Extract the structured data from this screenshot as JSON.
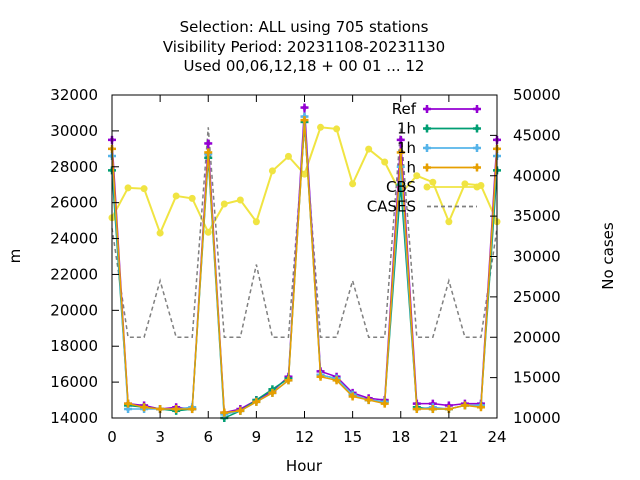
{
  "chart_data": {
    "type": "line",
    "title_lines": [
      "Selection: ALL using   705 stations",
      "Visibility    Period: 20231108-20231130",
      "Used  00,06,12,18 + 00 01 ... 12"
    ],
    "xlabel": "Hour",
    "ylabel": "m",
    "y2label": "No cases",
    "xlim": [
      0,
      24
    ],
    "ylim": [
      14000,
      32000
    ],
    "y2lim": [
      10000,
      50000
    ],
    "xticks": [
      0,
      3,
      6,
      9,
      12,
      15,
      18,
      21,
      24
    ],
    "yticks": [
      14000,
      16000,
      18000,
      20000,
      22000,
      24000,
      26000,
      28000,
      30000,
      32000
    ],
    "y2ticks": [
      10000,
      15000,
      20000,
      25000,
      30000,
      35000,
      40000,
      45000,
      50000
    ],
    "grid": false,
    "legend_position": "top-right",
    "x": [
      0,
      1,
      2,
      3,
      4,
      5,
      6,
      7,
      8,
      9,
      10,
      11,
      12,
      13,
      14,
      15,
      16,
      17,
      18,
      19,
      20,
      21,
      22,
      23,
      24
    ],
    "series": [
      {
        "name": "Ref",
        "axis": "y",
        "color": "#9400d3",
        "marker": "plus",
        "values": [
          29500,
          14800,
          14700,
          14500,
          14600,
          14500,
          29300,
          14300,
          14500,
          15000,
          15500,
          16300,
          31300,
          16600,
          16300,
          15400,
          15100,
          15000,
          29500,
          14800,
          14800,
          14700,
          14800,
          14800,
          29500
        ]
      },
      {
        "name": "1h",
        "axis": "y",
        "color": "#009e73",
        "marker": "plus",
        "values": [
          27800,
          14700,
          14600,
          14500,
          14400,
          14500,
          28500,
          14000,
          14400,
          15000,
          15600,
          16200,
          30500,
          16400,
          16200,
          15300,
          15000,
          14900,
          27000,
          14600,
          14500,
          14500,
          14700,
          14700,
          27800
        ]
      },
      {
        "name": "1h",
        "axis": "y",
        "color": "#56b4e9",
        "marker": "plus",
        "values": [
          28600,
          14500,
          14500,
          14500,
          14500,
          14600,
          28700,
          14200,
          14400,
          14900,
          15400,
          16100,
          30800,
          16400,
          16200,
          15300,
          15000,
          14900,
          28000,
          14500,
          14600,
          14500,
          14700,
          14700,
          28600
        ]
      },
      {
        "name": "h",
        "axis": "y",
        "color": "#e69f00",
        "marker": "plus",
        "values": [
          29000,
          14800,
          14600,
          14500,
          14500,
          14500,
          28800,
          14300,
          14400,
          14900,
          15400,
          16100,
          30600,
          16300,
          16100,
          15200,
          15000,
          14800,
          28800,
          14500,
          14500,
          14500,
          14700,
          14600,
          29000
        ]
      },
      {
        "name": "CBS",
        "axis": "y2",
        "color": "#f0e442",
        "marker": "circle",
        "values": [
          34800,
          38500,
          38400,
          32900,
          37500,
          37200,
          33000,
          36500,
          37000,
          34300,
          40600,
          42400,
          40200,
          46000,
          45800,
          39000,
          43300,
          41700,
          37800,
          40000,
          39200,
          34300,
          39000,
          38800,
          34300
        ]
      },
      {
        "name": "CASES",
        "axis": "y2",
        "color": "#808080",
        "marker": "none",
        "dash": "4,3",
        "values": [
          33500,
          20000,
          20000,
          27000,
          20000,
          20000,
          46000,
          20000,
          20000,
          29000,
          20000,
          20000,
          46000,
          20000,
          20000,
          27000,
          20000,
          20000,
          46000,
          20000,
          20000,
          27000,
          20000,
          20000,
          33500
        ]
      }
    ]
  }
}
